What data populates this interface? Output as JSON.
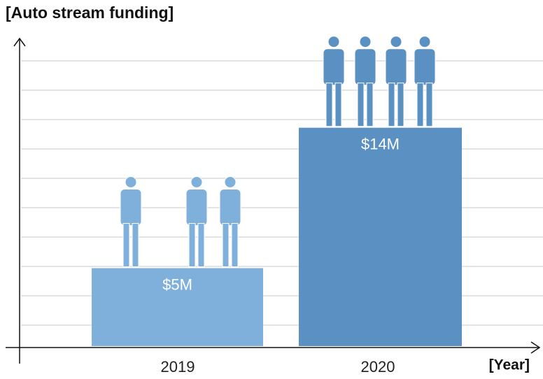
{
  "chart_data": {
    "type": "bar",
    "title": "[Auto stream funding]",
    "x_label": "[Year]",
    "categories": [
      "2019",
      "2020"
    ],
    "values": [
      5,
      14
    ],
    "value_labels": [
      "$5M",
      "$14M"
    ],
    "colors": [
      "#7fb0dc",
      "#5a90c2"
    ],
    "ylim": [
      0,
      19.5
    ],
    "grid": true
  }
}
